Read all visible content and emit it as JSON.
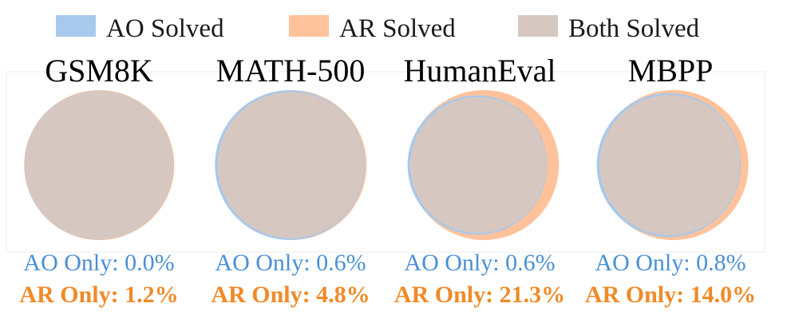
{
  "colors": {
    "ao": "#a8c8ec",
    "ar": "#ffc29a",
    "both": "#d6c8c0",
    "ao_text": "#4a90d6",
    "ar_text": "#f08a28"
  },
  "chart_data": {
    "type": "venn",
    "legend": {
      "position": "top",
      "entries": [
        {
          "name": "AO Solved",
          "color": "#a8c8ec"
        },
        {
          "name": "AR Solved",
          "color": "#ffc29a"
        },
        {
          "name": "Both Solved",
          "color": "#d6c8c0"
        }
      ]
    },
    "panels": [
      {
        "title": "GSM8K",
        "ao_only": 0.0,
        "ar_only": 1.2,
        "ao_only_text": "AO Only: 0.0%",
        "ar_only_text": "AR Only: 1.2%"
      },
      {
        "title": "MATH-500",
        "ao_only": 0.6,
        "ar_only": 4.8,
        "ao_only_text": "AO Only: 0.6%",
        "ar_only_text": "AR Only: 4.8%"
      },
      {
        "title": "HumanEval",
        "ao_only": 0.6,
        "ar_only": 21.3,
        "ao_only_text": "AO Only: 0.6%",
        "ar_only_text": "AR Only: 21.3%"
      },
      {
        "title": "MBPP",
        "ao_only": 0.8,
        "ar_only": 14.0,
        "ao_only_text": "AO Only: 0.8%",
        "ar_only_text": "AR Only: 14.0%"
      }
    ]
  }
}
